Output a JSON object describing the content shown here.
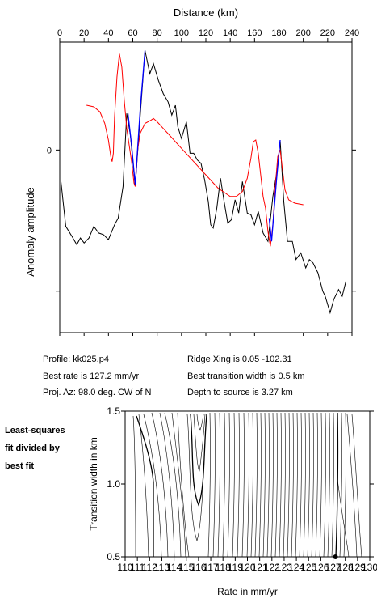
{
  "info": {
    "profile": "Profile: kk025.p4",
    "best_rate": "Best rate is 127.2 mm/yr",
    "proj_az": "Proj. Az: 98.0 deg. CW of N",
    "ridge_xing": "Ridge Xing is 0.05 -102.31",
    "best_width": "Best transition width is 0.5 km",
    "depth": "Depth to source is   3.27 km"
  },
  "side_note": [
    "Least-squares",
    "fit divided by",
    "best fit"
  ],
  "colors": {
    "observed": "#000000",
    "model": "#ff0000",
    "fit": "#0000ff",
    "best_point": "#000000"
  },
  "chart_data": [
    {
      "type": "line",
      "xlabel": "Distance (km)",
      "ylabel": "Anomaly amplitude",
      "xlim": [
        0,
        240
      ],
      "x_ticks": [
        "0",
        "20",
        "40",
        "60",
        "80",
        "100",
        "120",
        "140",
        "160",
        "180",
        "200",
        "220",
        "240"
      ],
      "ylim": [
        -1.1,
        0.65
      ],
      "y_ticks": [
        "0"
      ],
      "grid": false,
      "series": [
        {
          "role": "observed",
          "points": [
            [
              1,
              -0.19
            ],
            [
              5,
              -0.46
            ],
            [
              10,
              -0.52
            ],
            [
              14,
              -0.57
            ],
            [
              17,
              -0.53
            ],
            [
              20,
              -0.56
            ],
            [
              24,
              -0.53
            ],
            [
              28,
              -0.46
            ],
            [
              32,
              -0.5
            ],
            [
              36,
              -0.51
            ],
            [
              40,
              -0.54
            ],
            [
              45,
              -0.45
            ],
            [
              48,
              -0.41
            ],
            [
              52,
              -0.22
            ],
            [
              55,
              0.22
            ],
            [
              58,
              0.09
            ],
            [
              62,
              -0.22
            ],
            [
              66,
              0.2
            ],
            [
              70,
              0.6
            ],
            [
              74,
              0.46
            ],
            [
              77,
              0.52
            ],
            [
              81,
              0.42
            ],
            [
              85,
              0.34
            ],
            [
              89,
              0.29
            ],
            [
              92,
              0.21
            ],
            [
              95,
              0.27
            ],
            [
              97,
              0.14
            ],
            [
              100,
              0.07
            ],
            [
              104,
              0.17
            ],
            [
              107,
              -0.02
            ],
            [
              110,
              -0.02
            ],
            [
              113,
              -0.06
            ],
            [
              116,
              -0.08
            ],
            [
              119,
              -0.18
            ],
            [
              122,
              -0.31
            ],
            [
              124,
              -0.45
            ],
            [
              126,
              -0.47
            ],
            [
              129,
              -0.35
            ],
            [
              132,
              -0.17
            ],
            [
              135,
              -0.31
            ],
            [
              138,
              -0.44
            ],
            [
              141,
              -0.42
            ],
            [
              144,
              -0.3
            ],
            [
              147,
              -0.38
            ],
            [
              150,
              -0.19
            ],
            [
              154,
              -0.38
            ],
            [
              157,
              -0.39
            ],
            [
              160,
              -0.45
            ],
            [
              163,
              -0.37
            ],
            [
              167,
              -0.5
            ],
            [
              171,
              -0.55
            ],
            [
              175,
              -0.28
            ],
            [
              179,
              -0.1
            ],
            [
              181,
              0.06
            ],
            [
              184,
              -0.31
            ],
            [
              187,
              -0.55
            ],
            [
              191,
              -0.55
            ],
            [
              194,
              -0.66
            ],
            [
              198,
              -0.62
            ],
            [
              202,
              -0.71
            ],
            [
              205,
              -0.66
            ],
            [
              208,
              -0.68
            ],
            [
              212,
              -0.74
            ],
            [
              216,
              -0.85
            ],
            [
              218,
              -0.88
            ],
            [
              222,
              -0.98
            ],
            [
              225,
              -0.9
            ],
            [
              229,
              -0.84
            ],
            [
              232,
              -0.88
            ],
            [
              235,
              -0.79
            ]
          ]
        },
        {
          "role": "model",
          "points": [
            [
              22,
              0.27
            ],
            [
              28,
              0.26
            ],
            [
              33,
              0.23
            ],
            [
              37,
              0.16
            ],
            [
              40,
              0.06
            ],
            [
              42,
              -0.04
            ],
            [
              43,
              -0.07
            ],
            [
              44,
              -0.02
            ],
            [
              45,
              0.2
            ],
            [
              47,
              0.44
            ],
            [
              49,
              0.58
            ],
            [
              51,
              0.5
            ],
            [
              53,
              0.3
            ],
            [
              55,
              0.13
            ],
            [
              57,
              0.03
            ],
            [
              59,
              -0.07
            ],
            [
              61,
              -0.2
            ],
            [
              62,
              -0.22
            ],
            [
              64,
              0.0
            ],
            [
              66,
              0.1
            ],
            [
              70,
              0.16
            ],
            [
              75,
              0.18
            ],
            [
              77,
              0.19
            ],
            [
              80,
              0.17
            ],
            [
              85,
              0.13
            ],
            [
              90,
              0.09
            ],
            [
              100,
              0.01
            ],
            [
              110,
              -0.07
            ],
            [
              120,
              -0.15
            ],
            [
              130,
              -0.23
            ],
            [
              140,
              -0.28
            ],
            [
              145,
              -0.28
            ],
            [
              150,
              -0.25
            ],
            [
              154,
              -0.17
            ],
            [
              157,
              -0.05
            ],
            [
              159,
              0.05
            ],
            [
              161,
              0.06
            ],
            [
              163,
              -0.02
            ],
            [
              165,
              -0.15
            ],
            [
              167,
              -0.28
            ],
            [
              169,
              -0.35
            ],
            [
              171,
              -0.49
            ],
            [
              173,
              -0.58
            ],
            [
              175,
              -0.45
            ],
            [
              177,
              -0.22
            ],
            [
              179,
              -0.04
            ],
            [
              181,
              0.0
            ],
            [
              183,
              -0.12
            ],
            [
              185,
              -0.24
            ],
            [
              188,
              -0.3
            ],
            [
              193,
              -0.32
            ],
            [
              200,
              -0.33
            ]
          ]
        },
        {
          "role": "fit",
          "points": [
            [
              56,
              0.22
            ],
            [
              59,
              0.03
            ],
            [
              62,
              -0.21
            ],
            [
              66,
              0.24
            ],
            [
              70,
              0.6
            ]
          ]
        },
        {
          "role": "fit",
          "points": [
            [
              172,
              -0.41
            ],
            [
              174,
              -0.55
            ],
            [
              178,
              -0.18
            ],
            [
              181,
              0.06
            ]
          ]
        }
      ]
    },
    {
      "type": "contour",
      "xlabel": "Rate in mm/yr",
      "ylabel": "Transition width in km",
      "x_ticks": [
        "110",
        "111",
        "112",
        "113",
        "114",
        "115",
        "116",
        "117",
        "118",
        "119",
        "120",
        "121",
        "122",
        "123",
        "124",
        "125",
        "126",
        "127",
        "128",
        "129",
        "130"
      ],
      "xlim": [
        110,
        130
      ],
      "ylim": [
        0.5,
        1.5
      ],
      "y_ticks": [
        "0.5",
        "1.0",
        "1.5"
      ],
      "best_fit_point": {
        "rate": 127.2,
        "width": 0.5
      }
    }
  ]
}
